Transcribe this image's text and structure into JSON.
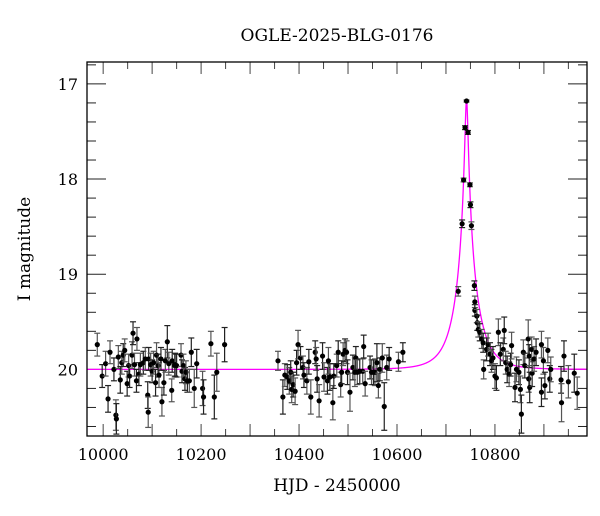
{
  "chart_data": {
    "type": "scatter",
    "title": "OGLE-2025-BLG-0176",
    "xlabel": "HJD - 2450000",
    "ylabel": "I magnitude",
    "xlim": [
      9967,
      10988
    ],
    "ylim": [
      20.7,
      16.77
    ],
    "y_inverted": true,
    "x_ticks": [
      10000,
      10200,
      10400,
      10600,
      10800
    ],
    "y_ticks": [
      17,
      18,
      19,
      20
    ],
    "grid": false,
    "colors": {
      "points": "#000000",
      "errorbars": "#555555",
      "model": "#ff00ff"
    },
    "model": {
      "type": "point-lens",
      "t0": 10742,
      "u0": 0.074,
      "tE": 42,
      "baseline": 20.0
    },
    "points_format": [
      "HJD-2450000",
      "I_mag",
      "err"
    ],
    "points": [
      [
        9988,
        19.74,
        0.12
      ],
      [
        9998,
        20.07,
        0.12
      ],
      [
        10005,
        19.94,
        0.13
      ],
      [
        10010,
        20.31,
        0.14
      ],
      [
        10014,
        19.82,
        0.12
      ],
      [
        10022,
        20.0,
        0.12
      ],
      [
        10026,
        20.48,
        0.16
      ],
      [
        10027,
        20.52,
        0.16
      ],
      [
        10031,
        19.87,
        0.12
      ],
      [
        10035,
        20.11,
        0.14
      ],
      [
        10038,
        19.93,
        0.12
      ],
      [
        10041,
        19.85,
        0.12
      ],
      [
        10044,
        19.8,
        0.12
      ],
      [
        10049,
        20.15,
        0.13
      ],
      [
        10052,
        19.96,
        0.12
      ],
      [
        10054,
        20.07,
        0.12
      ],
      [
        10059,
        19.85,
        0.14
      ],
      [
        10061,
        19.62,
        0.12
      ],
      [
        10064,
        19.95,
        0.12
      ],
      [
        10068,
        20.12,
        0.12
      ],
      [
        10069,
        19.68,
        0.12
      ],
      [
        10073,
        20.05,
        0.12
      ],
      [
        10076,
        19.95,
        0.12
      ],
      [
        10082,
        19.93,
        0.12
      ],
      [
        10086,
        19.89,
        0.12
      ],
      [
        10091,
        20.27,
        0.14
      ],
      [
        10092,
        20.45,
        0.16
      ],
      [
        10093,
        19.89,
        0.12
      ],
      [
        10097,
        19.95,
        0.12
      ],
      [
        10100,
        20.02,
        0.12
      ],
      [
        10103,
        19.93,
        0.12
      ],
      [
        10107,
        20.14,
        0.14
      ],
      [
        10109,
        19.85,
        0.13
      ],
      [
        10112,
        19.96,
        0.12
      ],
      [
        10114,
        20.06,
        0.13
      ],
      [
        10118,
        19.89,
        0.12
      ],
      [
        10120,
        20.34,
        0.15
      ],
      [
        10124,
        20.14,
        0.13
      ],
      [
        10127,
        19.91,
        0.12
      ],
      [
        10131,
        19.71,
        0.17
      ],
      [
        10134,
        19.94,
        0.12
      ],
      [
        10141,
        19.91,
        0.12
      ],
      [
        10146,
        19.96,
        0.12
      ],
      [
        10147,
        19.95,
        0.12
      ],
      [
        10140,
        20.22,
        0.12
      ],
      [
        10150,
        19.96,
        0.12
      ],
      [
        10159,
        19.85,
        0.12
      ],
      [
        10161,
        20.02,
        0.12
      ],
      [
        10164,
        19.96,
        0.12
      ],
      [
        10167,
        20.1,
        0.12
      ],
      [
        10169,
        20.03,
        0.12
      ],
      [
        10172,
        20.12,
        0.12
      ],
      [
        10176,
        20.12,
        0.12
      ],
      [
        10180,
        19.82,
        0.15
      ],
      [
        10186,
        20.2,
        0.2
      ],
      [
        10191,
        19.94,
        0.15
      ],
      [
        10203,
        20.2,
        0.18
      ],
      [
        10205,
        20.29,
        0.18
      ],
      [
        10220,
        19.73,
        0.13
      ],
      [
        10227,
        20.29,
        0.23
      ],
      [
        10232,
        20.03,
        0.2
      ],
      [
        10248,
        19.74,
        0.18
      ],
      [
        10357,
        19.91,
        0.1
      ],
      [
        10367,
        20.29,
        0.18
      ],
      [
        10371,
        20.06,
        0.12
      ],
      [
        10376,
        20.08,
        0.13
      ],
      [
        10380,
        20.12,
        0.14
      ],
      [
        10383,
        20.03,
        0.12
      ],
      [
        10385,
        20.21,
        0.14
      ],
      [
        10388,
        20.16,
        0.13
      ],
      [
        10392,
        20.23,
        0.14
      ],
      [
        10395,
        19.93,
        0.13
      ],
      [
        10398,
        19.74,
        0.15
      ],
      [
        10403,
        19.88,
        0.12
      ],
      [
        10408,
        19.98,
        0.12
      ],
      [
        10410,
        20.06,
        0.13
      ],
      [
        10416,
        20.12,
        0.14
      ],
      [
        10420,
        19.92,
        0.13
      ],
      [
        10424,
        20.29,
        0.18
      ],
      [
        10433,
        19.82,
        0.12
      ],
      [
        10435,
        19.89,
        0.12
      ],
      [
        10437,
        20.1,
        0.14
      ],
      [
        10441,
        20.33,
        0.17
      ],
      [
        10448,
        19.86,
        0.14
      ],
      [
        10451,
        20.08,
        0.15
      ],
      [
        10458,
        20.12,
        0.14
      ],
      [
        10460,
        19.91,
        0.14
      ],
      [
        10463,
        20.08,
        0.14
      ],
      [
        10469,
        20.35,
        0.18
      ],
      [
        10471,
        20.07,
        0.13
      ],
      [
        10477,
        19.96,
        0.12
      ],
      [
        10480,
        19.82,
        0.12
      ],
      [
        10485,
        20.16,
        0.13
      ],
      [
        10487,
        20.03,
        0.12
      ],
      [
        10490,
        19.84,
        0.12
      ],
      [
        10494,
        19.8,
        0.12
      ],
      [
        10497,
        19.82,
        0.12
      ],
      [
        10499,
        20.03,
        0.13
      ],
      [
        10504,
        20.24,
        0.2
      ],
      [
        10510,
        19.98,
        0.13
      ],
      [
        10514,
        20.03,
        0.15
      ],
      [
        10516,
        19.88,
        0.12
      ],
      [
        10519,
        20.03,
        0.13
      ],
      [
        10524,
        20.02,
        0.13
      ],
      [
        10530,
        20.02,
        0.13
      ],
      [
        10532,
        19.76,
        0.12
      ],
      [
        10535,
        20.15,
        0.13
      ],
      [
        10545,
        19.98,
        0.12
      ],
      [
        10548,
        20.03,
        0.13
      ],
      [
        10552,
        20.03,
        0.13
      ],
      [
        10555,
        20.03,
        0.14
      ],
      [
        10559,
        19.93,
        0.2
      ],
      [
        10562,
        20.17,
        0.13
      ],
      [
        10565,
        20.0,
        0.12
      ],
      [
        10570,
        19.88,
        0.15
      ],
      [
        10574,
        20.39,
        0.25
      ],
      [
        10579,
        19.98,
        0.13
      ],
      [
        10584,
        19.89,
        0.12
      ],
      [
        10603,
        19.92,
        0.1
      ],
      [
        10612,
        19.82,
        0.1
      ],
      [
        10725,
        19.18,
        0.05
      ],
      [
        10733,
        18.47,
        0.04
      ],
      [
        10736,
        18.01,
        0.02
      ],
      [
        10739,
        17.46,
        0.02
      ],
      [
        10742,
        17.18,
        0.01
      ],
      [
        10745,
        17.51,
        0.02
      ],
      [
        10749,
        18.06,
        0.02
      ],
      [
        10750,
        18.27,
        0.03
      ],
      [
        10752,
        18.49,
        0.04
      ],
      [
        10758,
        19.12,
        0.05
      ],
      [
        10759,
        19.29,
        0.06
      ],
      [
        10759,
        19.38,
        0.06
      ],
      [
        10763,
        19.44,
        0.07
      ],
      [
        10764,
        19.51,
        0.08
      ],
      [
        10766,
        19.58,
        0.08
      ],
      [
        10769,
        19.61,
        0.09
      ],
      [
        10773,
        19.68,
        0.1
      ],
      [
        10776,
        19.72,
        0.1
      ],
      [
        10777,
        20.0,
        0.1
      ],
      [
        10783,
        19.79,
        0.12
      ],
      [
        10786,
        19.74,
        0.12
      ],
      [
        10790,
        19.84,
        0.12
      ],
      [
        10793,
        19.91,
        0.12
      ],
      [
        10796,
        19.88,
        0.12
      ],
      [
        10800,
        20.07,
        0.13
      ],
      [
        10803,
        20.09,
        0.13
      ],
      [
        10807,
        19.61,
        0.14
      ],
      [
        10811,
        19.84,
        0.12
      ],
      [
        10817,
        19.79,
        0.12
      ],
      [
        10819,
        19.59,
        0.14
      ],
      [
        10822,
        19.93,
        0.12
      ],
      [
        10825,
        20.0,
        0.14
      ],
      [
        10829,
        20.05,
        0.13
      ],
      [
        10832,
        19.95,
        0.12
      ],
      [
        10834,
        19.75,
        0.14
      ],
      [
        10841,
        20.19,
        0.15
      ],
      [
        10844,
        20.0,
        0.13
      ],
      [
        10849,
        20.03,
        0.13
      ],
      [
        10852,
        20.21,
        0.14
      ],
      [
        10854,
        20.47,
        0.2
      ],
      [
        10858,
        19.82,
        0.13
      ],
      [
        10861,
        19.96,
        0.13
      ],
      [
        10868,
        19.68,
        0.2
      ],
      [
        10870,
        19.86,
        0.12
      ],
      [
        10869,
        20.1,
        0.14
      ],
      [
        10871,
        20.19,
        0.16
      ],
      [
        10875,
        19.79,
        0.13
      ],
      [
        10876,
        20.04,
        0.14
      ],
      [
        10880,
        19.89,
        0.13
      ],
      [
        10884,
        19.82,
        0.14
      ],
      [
        10895,
        19.74,
        0.14
      ],
      [
        10895,
        20.24,
        0.15
      ],
      [
        10899,
        19.91,
        0.14
      ],
      [
        10902,
        20.17,
        0.14
      ],
      [
        10908,
        19.8,
        0.13
      ],
      [
        10912,
        20.1,
        0.14
      ],
      [
        10914,
        20.0,
        0.13
      ],
      [
        10935,
        20.11,
        0.14
      ],
      [
        10936,
        20.35,
        0.2
      ],
      [
        10941,
        19.86,
        0.16
      ],
      [
        10950,
        20.13,
        0.17
      ],
      [
        10962,
        20.04,
        0.2
      ],
      [
        10968,
        20.25,
        0.17
      ]
    ]
  }
}
